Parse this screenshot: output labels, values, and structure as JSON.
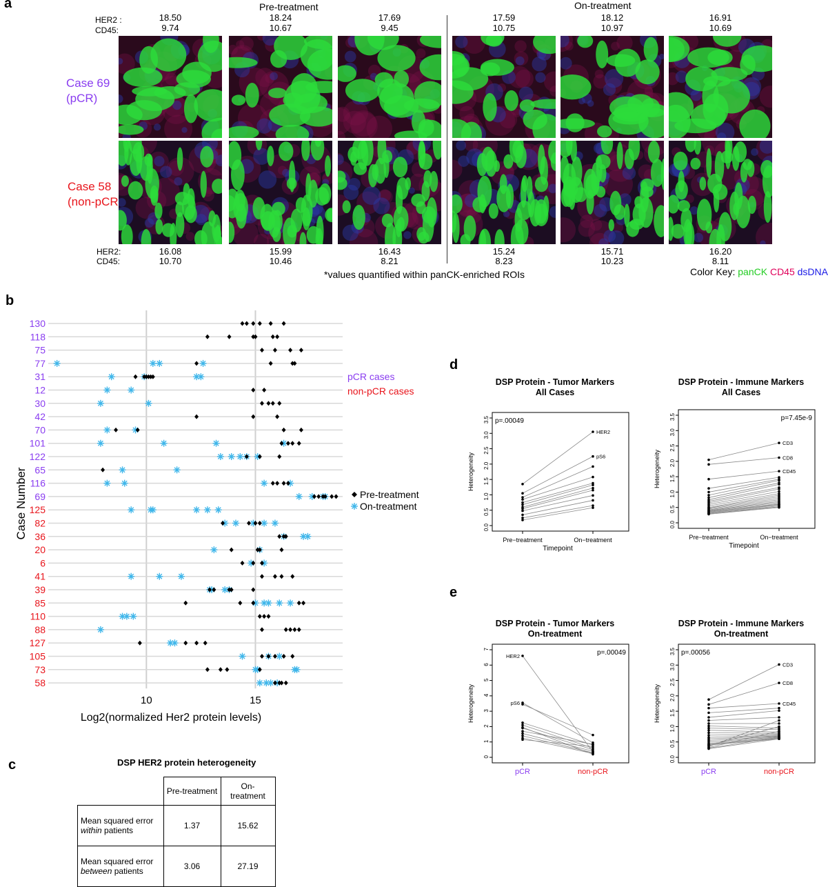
{
  "panel_a": {
    "letter": "a",
    "group_pre": "Pre-treatment",
    "group_on": "On-treatment",
    "label_her2_top": "HER2 :",
    "label_cd45_top": "CD45:",
    "label_her2_bottom": "HER2:",
    "label_cd45_bottom": "CD45:",
    "case_top_line1": "Case 69",
    "case_top_line2": "(pCR)",
    "case_bottom_line1": "Case 58",
    "case_bottom_line2": "(non-pCR)",
    "top_values": [
      {
        "her2": "18.50",
        "cd45": "9.74"
      },
      {
        "her2": "18.24",
        "cd45": "10.67"
      },
      {
        "her2": "17.69",
        "cd45": "9.45"
      },
      {
        "her2": "17.59",
        "cd45": "10.75"
      },
      {
        "her2": "18.12",
        "cd45": "10.97"
      },
      {
        "her2": "16.91",
        "cd45": "10.69"
      }
    ],
    "bottom_values": [
      {
        "her2": "16.08",
        "cd45": "10.70"
      },
      {
        "her2": "15.99",
        "cd45": "10.46"
      },
      {
        "her2": "16.43",
        "cd45": "8.21"
      },
      {
        "her2": "15.24",
        "cd45": "8.23"
      },
      {
        "her2": "15.71",
        "cd45": "10.23"
      },
      {
        "her2": "16.20",
        "cd45": "8.11"
      }
    ],
    "footnote": "*values quantified within panCK-enriched ROIs",
    "color_key_label": "Color Key:",
    "color_key_items": [
      {
        "text": "panCK",
        "color": "#22cc22"
      },
      {
        "text": "CD45",
        "color": "#e0005a"
      },
      {
        "text": "dsDNA",
        "color": "#1a1ae6"
      }
    ]
  },
  "colors": {
    "pcr": "#8a3df0",
    "nonpcr": "#e8141b",
    "pre": "#000000",
    "on": "#3fb6ea"
  },
  "panel_b": {
    "letter": "b"
  },
  "panel_c": {
    "letter": "c",
    "title": "DSP HER2 protein heterogeneity",
    "col_pre": "Pre-treatment",
    "col_on": "On-treatment",
    "row1_text": "Mean squared error",
    "row1_em": "within",
    "row1_rest": "patients",
    "row2_text": "Mean squared error",
    "row2_em": "between",
    "row2_rest": "patients",
    "row1_pre": "1.37",
    "row1_on": "15.62",
    "row2_pre": "3.06",
    "row2_on": "27.19"
  },
  "panel_d": {
    "letter": "d"
  },
  "panel_e": {
    "letter": "e"
  },
  "chart_data": [
    {
      "type": "scatter",
      "panel": "b",
      "ylabel": "Case Number",
      "xlabel": "Log2(normalized Her2 protein levels)",
      "xlim": [
        5.5,
        19
      ],
      "xticks": [
        10,
        15
      ],
      "grid": true,
      "legend_groups": [
        {
          "text": "pCR cases",
          "color": "#8a3df0"
        },
        {
          "text": "non-pCR cases",
          "color": "#e8141b"
        }
      ],
      "legend_series": [
        {
          "name": "Pre-treatment",
          "marker": "diamond",
          "color": "#000000"
        },
        {
          "name": "On-treatment",
          "marker": "asterisk",
          "color": "#3fb6ea"
        }
      ],
      "cases": [
        {
          "case": "130",
          "group": "pcr",
          "pre": [
            14.4,
            14.6,
            14.9,
            15.2,
            15.7,
            16.3
          ],
          "on": []
        },
        {
          "case": "118",
          "group": "pcr",
          "pre": [
            12.8,
            13.8,
            14.9,
            15.0,
            15.8,
            16.0
          ],
          "on": []
        },
        {
          "case": "75",
          "group": "pcr",
          "pre": [
            15.3,
            15.9,
            16.6,
            17.1
          ],
          "on": []
        },
        {
          "case": "77",
          "group": "pcr",
          "pre": [
            12.3,
            15.7,
            16.7,
            16.8
          ],
          "on": [
            5.9,
            10.3,
            10.6,
            12.6
          ]
        },
        {
          "case": "31",
          "group": "pcr",
          "pre": [
            9.5,
            9.9,
            10.0,
            10.1,
            10.2,
            10.3
          ],
          "on": [
            8.4,
            9.9,
            12.3,
            12.5
          ]
        },
        {
          "case": "12",
          "group": "pcr",
          "pre": [
            14.9,
            15.4
          ],
          "on": [
            8.2,
            9.3
          ]
        },
        {
          "case": "30",
          "group": "pcr",
          "pre": [
            15.3,
            15.6,
            15.8,
            16.1
          ],
          "on": [
            7.9,
            10.1
          ]
        },
        {
          "case": "42",
          "group": "pcr",
          "pre": [
            12.3,
            14.9,
            16.0
          ],
          "on": []
        },
        {
          "case": "70",
          "group": "pcr",
          "pre": [
            8.6,
            9.6,
            16.3,
            17.1
          ],
          "on": [
            8.2,
            9.5
          ]
        },
        {
          "case": "101",
          "group": "pcr",
          "pre": [
            16.2,
            16.5,
            16.7,
            17.0
          ],
          "on": [
            7.9,
            10.8,
            13.2,
            16.3
          ]
        },
        {
          "case": "122",
          "group": "pcr",
          "pre": [
            14.6,
            15.2,
            16.1
          ],
          "on": [
            13.4,
            13.9,
            14.3,
            14.6,
            15.1
          ]
        },
        {
          "case": "65",
          "group": "pcr",
          "pre": [
            8.0
          ],
          "on": [
            8.9,
            11.4
          ]
        },
        {
          "case": "116",
          "group": "pcr",
          "pre": [
            15.8,
            16.0,
            16.3,
            16.5
          ],
          "on": [
            8.2,
            9.0,
            15.4,
            16.6
          ]
        },
        {
          "case": "69",
          "group": "pcr",
          "pre": [
            17.7,
            17.9,
            18.1,
            18.2,
            18.5,
            18.7
          ],
          "on": [
            17.0,
            17.6,
            18.1,
            18.2
          ]
        },
        {
          "case": "125",
          "group": "nonpcr",
          "pre": [],
          "on": [
            9.3,
            10.2,
            10.3,
            12.3,
            12.8,
            13.3
          ]
        },
        {
          "case": "82",
          "group": "nonpcr",
          "pre": [
            13.5,
            14.7,
            15.0,
            15.2
          ],
          "on": [
            13.6,
            14.1,
            14.9,
            15.4,
            15.9
          ]
        },
        {
          "case": "36",
          "group": "nonpcr",
          "pre": [
            16.1,
            16.3,
            16.4
          ],
          "on": [
            16.3,
            17.2,
            17.4
          ]
        },
        {
          "case": "20",
          "group": "nonpcr",
          "pre": [
            13.9,
            15.1,
            15.2,
            16.2
          ],
          "on": [
            13.1,
            15.2
          ]
        },
        {
          "case": "6",
          "group": "nonpcr",
          "pre": [
            14.4,
            14.9,
            15.3
          ],
          "on": [
            14.8,
            15.4
          ]
        },
        {
          "case": "41",
          "group": "nonpcr",
          "pre": [
            15.3,
            15.9,
            16.2,
            16.7
          ],
          "on": [
            9.3,
            10.6,
            11.6
          ]
        },
        {
          "case": "39",
          "group": "nonpcr",
          "pre": [
            12.9,
            13.1,
            13.8,
            13.9,
            14.9
          ],
          "on": [
            12.9,
            13.0,
            13.6,
            13.8
          ]
        },
        {
          "case": "85",
          "group": "nonpcr",
          "pre": [
            11.8,
            14.3,
            14.9,
            17.0,
            17.2
          ],
          "on": [
            15.0,
            15.4,
            15.6,
            16.1,
            16.6
          ]
        },
        {
          "case": "110",
          "group": "nonpcr",
          "pre": [
            15.2,
            15.4,
            15.6
          ],
          "on": [
            8.9,
            9.1,
            9.4
          ]
        },
        {
          "case": "88",
          "group": "nonpcr",
          "pre": [
            15.3,
            16.4,
            16.6,
            16.8,
            17.0
          ],
          "on": [
            7.9
          ]
        },
        {
          "case": "127",
          "group": "nonpcr",
          "pre": [
            9.7,
            11.8,
            12.3,
            12.7
          ],
          "on": [
            11.1,
            11.3
          ]
        },
        {
          "case": "105",
          "group": "nonpcr",
          "pre": [
            15.3,
            15.6,
            15.9,
            16.3,
            16.7
          ],
          "on": [
            14.4,
            15.6,
            16.1
          ]
        },
        {
          "case": "73",
          "group": "nonpcr",
          "pre": [
            12.8,
            13.4,
            13.7,
            15.2
          ],
          "on": [
            15.0,
            15.1,
            16.8,
            16.9
          ]
        },
        {
          "case": "58",
          "group": "nonpcr",
          "pre": [
            15.9,
            16.1,
            16.2,
            16.4
          ],
          "on": [
            15.2,
            15.5,
            15.7,
            16.0
          ]
        }
      ]
    },
    {
      "type": "line",
      "panel": "d1",
      "title": "DSP Protein - Tumor Markers",
      "subtitle": "All Cases",
      "pvalue": "p=.00049",
      "ylabel": "Heterogeneity",
      "xlabel": "Timepoint",
      "categories": [
        "Pre−treatment",
        "On−treatment"
      ],
      "ylim": [
        0,
        3.5
      ],
      "yticks": [
        "0.0",
        "0.5",
        "1.0",
        "1.5",
        "2.0",
        "2.5",
        "3.0",
        "3.5"
      ],
      "pairs": [
        [
          1.35,
          3.05
        ],
        [
          1.05,
          2.25
        ],
        [
          0.92,
          1.92
        ],
        [
          0.85,
          1.58
        ],
        [
          0.75,
          1.38
        ],
        [
          0.68,
          1.32
        ],
        [
          0.6,
          1.22
        ],
        [
          0.55,
          1.15
        ],
        [
          0.48,
          0.98
        ],
        [
          0.35,
          0.82
        ],
        [
          0.25,
          0.65
        ],
        [
          0.18,
          0.58
        ]
      ],
      "labels": [
        {
          "text": "HER2",
          "y": 3.05
        },
        {
          "text": "pS6",
          "y": 2.25
        }
      ]
    },
    {
      "type": "line",
      "panel": "d2",
      "title": "DSP Protein - Immune Markers",
      "subtitle": "All Cases",
      "pvalue": "p=7.45e-9",
      "ylabel": "Heterogeneity",
      "xlabel": "Timepoint",
      "categories": [
        "Pre−treatment",
        "On−treatment"
      ],
      "ylim": [
        0,
        3.5
      ],
      "yticks": [
        "0.0",
        "0.5",
        "1.0",
        "1.5",
        "2.0",
        "2.5",
        "3.0",
        "3.5"
      ],
      "pairs": [
        [
          2.05,
          2.6
        ],
        [
          1.9,
          2.12
        ],
        [
          1.42,
          1.68
        ],
        [
          1.12,
          1.48
        ],
        [
          1.0,
          1.42
        ],
        [
          0.9,
          1.38
        ],
        [
          0.82,
          1.3
        ],
        [
          0.75,
          1.25
        ],
        [
          0.7,
          1.15
        ],
        [
          0.65,
          1.1
        ],
        [
          0.6,
          1.02
        ],
        [
          0.55,
          0.95
        ],
        [
          0.5,
          0.9
        ],
        [
          0.48,
          0.85
        ],
        [
          0.45,
          0.8
        ],
        [
          0.42,
          0.75
        ],
        [
          0.4,
          0.7
        ],
        [
          0.38,
          0.66
        ],
        [
          0.36,
          0.62
        ],
        [
          0.34,
          0.6
        ],
        [
          0.32,
          0.58
        ],
        [
          0.3,
          0.55
        ],
        [
          0.3,
          0.52
        ],
        [
          0.28,
          0.5
        ]
      ],
      "labels": [
        {
          "text": "CD3",
          "y": 2.6
        },
        {
          "text": "CD8",
          "y": 2.12
        },
        {
          "text": "CD45",
          "y": 1.68
        }
      ]
    },
    {
      "type": "line",
      "panel": "e1",
      "title": "DSP Protein - Tumor Markers",
      "subtitle": "On-treatment",
      "pvalue": "p=.00049",
      "ylabel": "Heterogeneity",
      "xlabel": "",
      "categories": [
        "pCR",
        "non-pCR"
      ],
      "ylim": [
        0,
        7
      ],
      "yticks": [
        "0",
        "1",
        "2",
        "3",
        "4",
        "5",
        "6",
        "7"
      ],
      "pairs": [
        [
          6.6,
          0.35
        ],
        [
          3.55,
          0.95
        ],
        [
          3.45,
          1.45
        ],
        [
          2.25,
          0.8
        ],
        [
          2.1,
          0.6
        ],
        [
          1.9,
          0.5
        ],
        [
          1.7,
          0.85
        ],
        [
          1.55,
          0.4
        ],
        [
          1.4,
          0.3
        ],
        [
          1.25,
          0.25
        ],
        [
          1.15,
          0.7
        ],
        [
          1.95,
          0.2
        ]
      ],
      "labels": [
        {
          "text": "HER2",
          "y": 6.6
        },
        {
          "text": "pS6",
          "y": 3.55
        }
      ]
    },
    {
      "type": "line",
      "panel": "e2",
      "title": "DSP Protein - Immune Markers",
      "subtitle": "On-treatment",
      "pvalue": "p=.00056",
      "ylabel": "Heterogeneity",
      "xlabel": "",
      "categories": [
        "pCR",
        "non-pCR"
      ],
      "ylim": [
        0,
        3.5
      ],
      "yticks": [
        "0.0",
        "0.5",
        "1.0",
        "1.5",
        "2.0",
        "2.5",
        "3.0",
        "3.5"
      ],
      "pairs": [
        [
          1.88,
          3.02
        ],
        [
          1.72,
          2.42
        ],
        [
          1.6,
          1.75
        ],
        [
          1.45,
          1.6
        ],
        [
          1.3,
          1.52
        ],
        [
          1.2,
          1.3
        ],
        [
          1.1,
          1.1
        ],
        [
          1.02,
          0.95
        ],
        [
          0.95,
          0.9
        ],
        [
          0.88,
          0.82
        ],
        [
          0.8,
          0.78
        ],
        [
          0.72,
          0.75
        ],
        [
          0.65,
          0.72
        ],
        [
          0.6,
          0.7
        ],
        [
          0.55,
          0.68
        ],
        [
          0.5,
          0.66
        ],
        [
          0.45,
          0.64
        ],
        [
          0.42,
          0.62
        ],
        [
          0.4,
          0.6
        ],
        [
          0.38,
          1.0
        ],
        [
          0.35,
          1.2
        ],
        [
          0.32,
          0.85
        ],
        [
          0.3,
          0.65
        ],
        [
          0.28,
          0.6
        ]
      ],
      "labels": [
        {
          "text": "CD3",
          "y": 3.02
        },
        {
          "text": "CD8",
          "y": 2.42
        },
        {
          "text": "CD45",
          "y": 1.75
        }
      ]
    }
  ]
}
